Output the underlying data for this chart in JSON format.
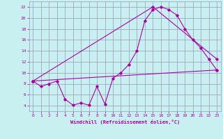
{
  "xlabel": "Windchill (Refroidissement éolien,°C)",
  "bg_color": "#c8f0f0",
  "grid_color": "#9999bb",
  "line_color": "#aa00aa",
  "xlim": [
    -0.5,
    23.5
  ],
  "ylim": [
    3.0,
    23.0
  ],
  "xticks": [
    0,
    1,
    2,
    3,
    4,
    5,
    6,
    7,
    8,
    9,
    10,
    11,
    12,
    13,
    14,
    15,
    16,
    17,
    18,
    19,
    20,
    21,
    22,
    23
  ],
  "yticks": [
    4,
    6,
    8,
    10,
    12,
    14,
    16,
    18,
    20,
    22
  ],
  "curve1_x": [
    0,
    1,
    2,
    3,
    4,
    5,
    6,
    7,
    8,
    9,
    10,
    11,
    12,
    13,
    14,
    15,
    16,
    17,
    18,
    19,
    20,
    21,
    22,
    23
  ],
  "curve1_y": [
    8.5,
    7.5,
    8.0,
    8.5,
    5.2,
    4.1,
    4.5,
    4.1,
    7.5,
    4.3,
    9.0,
    10.0,
    11.5,
    14.0,
    19.5,
    21.5,
    22.0,
    21.5,
    20.5,
    18.0,
    16.0,
    14.5,
    12.5,
    10.5
  ],
  "curve2_x": [
    0,
    23
  ],
  "curve2_y": [
    8.5,
    10.5
  ],
  "curve3_x": [
    0,
    15,
    23
  ],
  "curve3_y": [
    8.5,
    22.0,
    12.5
  ]
}
